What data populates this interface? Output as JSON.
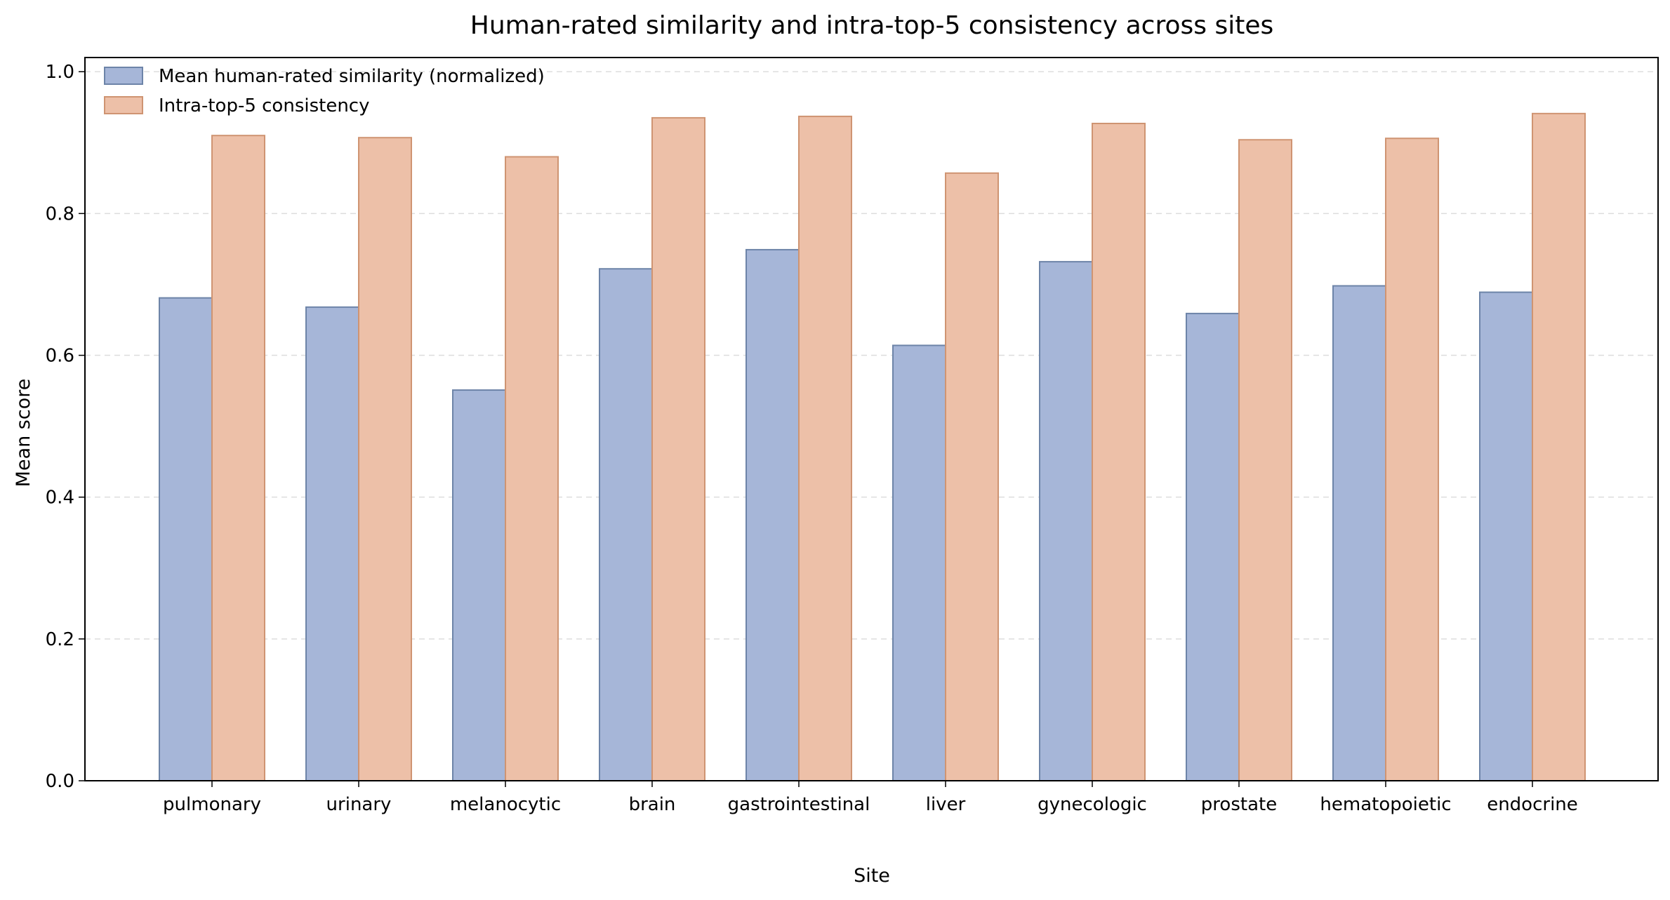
{
  "chart_data": {
    "type": "bar",
    "title": "Human-rated similarity and intra-top-5 consistency across sites",
    "xlabel": "Site",
    "ylabel": "Mean score",
    "categories": [
      "pulmonary",
      "urinary",
      "melanocytic",
      "brain",
      "gastrointestinal",
      "liver",
      "gynecologic",
      "prostate",
      "hematopoietic",
      "endocrine"
    ],
    "series": [
      {
        "name": "Mean human-rated similarity (normalized)",
        "values": [
          0.681,
          0.668,
          0.551,
          0.722,
          0.749,
          0.614,
          0.732,
          0.659,
          0.698,
          0.689
        ],
        "color": "#a6b6d8",
        "edge": "#6d84a8"
      },
      {
        "name": "Intra-top-5 consistency",
        "values": [
          0.91,
          0.907,
          0.88,
          0.935,
          0.937,
          0.857,
          0.927,
          0.904,
          0.906,
          0.941
        ],
        "color": "#edc0a8",
        "edge": "#cf9472"
      }
    ],
    "ylim": [
      0,
      1.02
    ],
    "yticks": [
      "0.0",
      "0.2",
      "0.4",
      "0.6",
      "0.8",
      "1.0"
    ],
    "grid": "horizontal dashed",
    "legend_position": "top-left"
  }
}
